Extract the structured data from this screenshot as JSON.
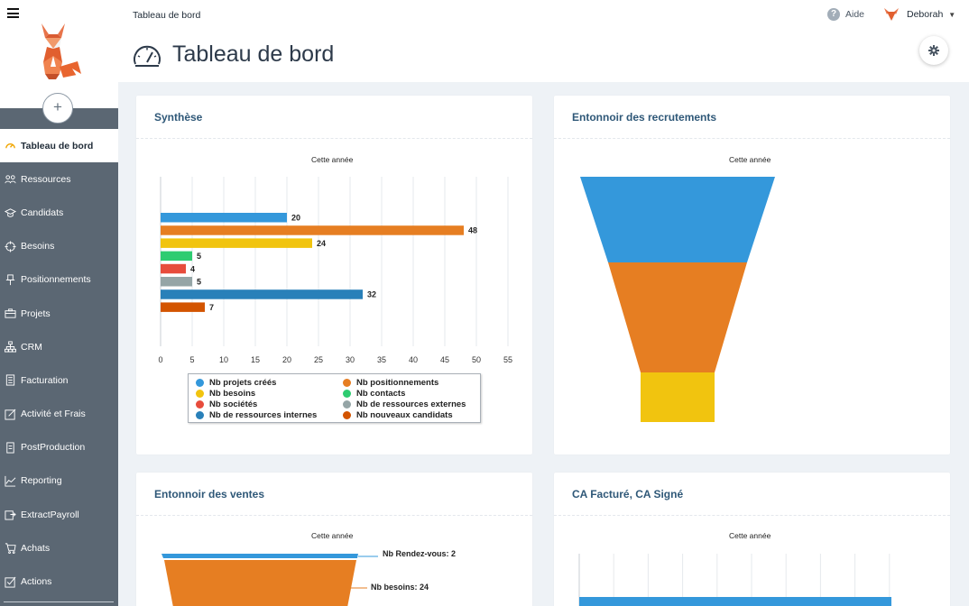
{
  "topbar": {
    "breadcrumb": "Tableau de bord",
    "help_label": "Aide",
    "user_name": "Deborah"
  },
  "page": {
    "title": "Tableau de bord"
  },
  "sidebar": {
    "items": [
      {
        "label": "Tableau de bord",
        "icon": "gauge-icon",
        "active": true
      },
      {
        "label": "Ressources",
        "icon": "users-icon"
      },
      {
        "label": "Candidats",
        "icon": "graduation-cap-icon"
      },
      {
        "label": "Besoins",
        "icon": "crosshair-icon"
      },
      {
        "label": "Positionnements",
        "icon": "pin-icon"
      },
      {
        "label": "Projets",
        "icon": "briefcase-icon"
      },
      {
        "label": "CRM",
        "icon": "sitemap-icon"
      },
      {
        "label": "Facturation",
        "icon": "invoice-icon"
      },
      {
        "label": "Activité et Frais",
        "icon": "edit-icon"
      },
      {
        "label": "PostProduction",
        "icon": "document-icon"
      },
      {
        "label": "Reporting",
        "icon": "line-chart-icon"
      },
      {
        "label": "ExtractPayroll",
        "icon": "export-icon"
      },
      {
        "label": "Achats",
        "icon": "cart-icon"
      },
      {
        "label": "Actions",
        "icon": "checklist-icon"
      }
    ]
  },
  "cards": {
    "synthese": {
      "title": "Synthèse",
      "subtitle": "Cette année"
    },
    "recrutements": {
      "title": "Entonnoir des recrutements",
      "subtitle": "Cette année"
    },
    "ventes": {
      "title": "Entonnoir des ventes",
      "subtitle": "Cette année"
    },
    "ca": {
      "title": "CA Facturé, CA Signé",
      "subtitle": "Cette année"
    }
  },
  "colors": {
    "blue": "#3498db",
    "orange": "#e67e22",
    "yellow": "#f1c40f",
    "green": "#2ecc71",
    "red": "#e74c3c",
    "gray": "#95a5a6",
    "darkblue": "#2980b9",
    "darkorange": "#d35400"
  },
  "chart_data": [
    {
      "type": "bar",
      "orientation": "horizontal",
      "title": "Cette année",
      "xlim": [
        0,
        55
      ],
      "x_ticks": [
        0,
        5,
        10,
        15,
        20,
        25,
        30,
        35,
        40,
        45,
        50,
        55
      ],
      "grid": true,
      "legend_position": "bottom",
      "series": [
        {
          "name": "Nb projets créés",
          "value": 20,
          "color": "#3498db"
        },
        {
          "name": "Nb positionnements",
          "value": 48,
          "color": "#e67e22"
        },
        {
          "name": "Nb besoins",
          "value": 24,
          "color": "#f1c40f"
        },
        {
          "name": "Nb contacts",
          "value": 5,
          "color": "#2ecc71"
        },
        {
          "name": "Nb sociétés",
          "value": 4,
          "color": "#e74c3c"
        },
        {
          "name": "Nb de ressources externes",
          "value": 5,
          "color": "#95a5a6"
        },
        {
          "name": "Nb de ressources internes",
          "value": 32,
          "color": "#2980b9"
        },
        {
          "name": "Nb nouveaux candidats",
          "value": 7,
          "color": "#d35400"
        }
      ]
    },
    {
      "type": "funnel",
      "title": "Cette année",
      "segments": [
        {
          "color": "#3498db"
        },
        {
          "color": "#e67e22"
        },
        {
          "color": "#f1c40f"
        }
      ]
    },
    {
      "type": "funnel",
      "title": "Cette année",
      "segments": [
        {
          "label": "Nb Rendez-vous: 2",
          "color": "#3498db"
        },
        {
          "label": "Nb besoins: 24",
          "color": "#e67e22"
        }
      ]
    },
    {
      "type": "bar",
      "orientation": "horizontal",
      "title": "Cette année",
      "series": [
        {
          "color": "#3498db"
        }
      ]
    }
  ]
}
